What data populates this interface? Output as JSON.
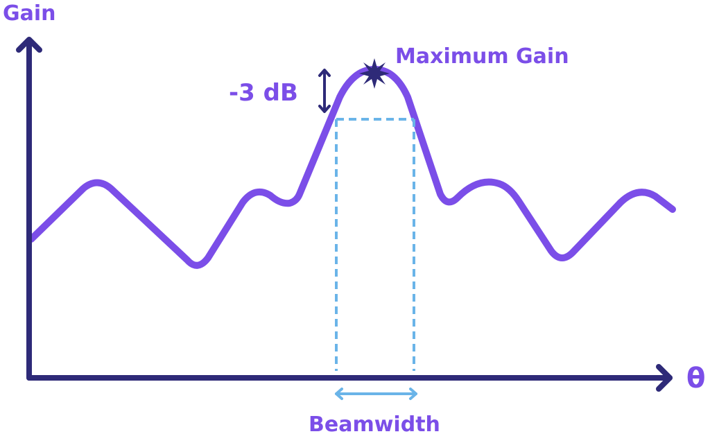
{
  "labels": {
    "y_axis": "Gain",
    "x_axis": "θ",
    "peak": "Maximum Gain",
    "drop": "-3 dB",
    "width": "Beamwidth"
  }
}
